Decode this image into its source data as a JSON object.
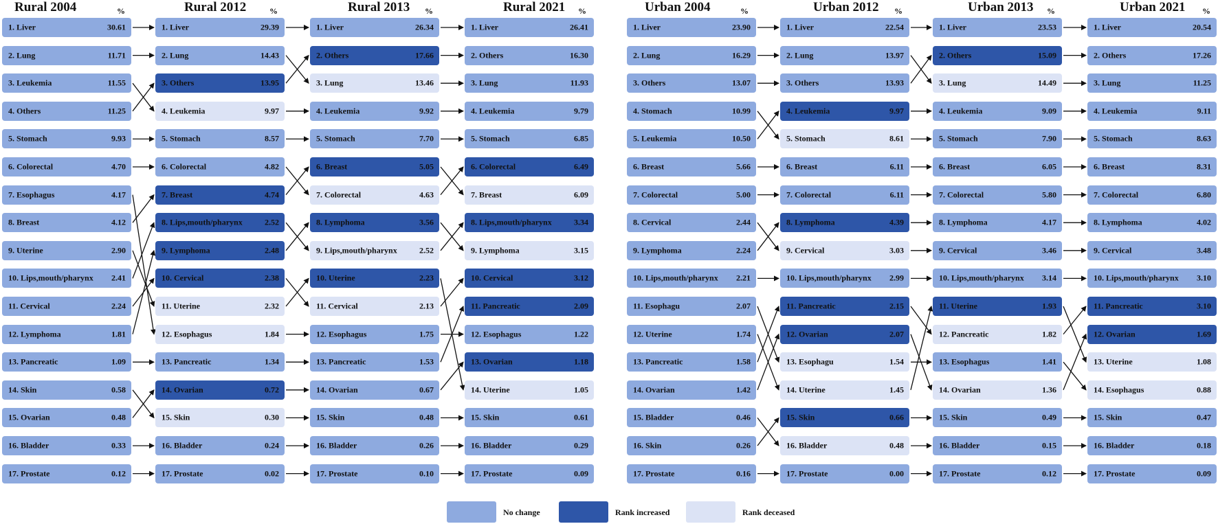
{
  "colors": {
    "no_change": "#8eaadf",
    "rank_increased": "#2e56a8",
    "rank_decreased": "#dce3f5"
  },
  "pct_label": "%",
  "legend": [
    {
      "status": "same",
      "label": "No change"
    },
    {
      "status": "up",
      "label": "Rank increased"
    },
    {
      "status": "down",
      "label": "Rank deceased"
    }
  ],
  "columns": [
    {
      "title": "Rural 2004",
      "items": [
        {
          "name": "1. Liver",
          "value": "30.61",
          "status": "same"
        },
        {
          "name": "2. Lung",
          "value": "11.71",
          "status": "same"
        },
        {
          "name": "3. Leukemia",
          "value": "11.55",
          "status": "same"
        },
        {
          "name": "4. Others",
          "value": "11.25",
          "status": "same"
        },
        {
          "name": "5. Stomach",
          "value": "9.93",
          "status": "same"
        },
        {
          "name": "6. Colorectal",
          "value": "4.70",
          "status": "same"
        },
        {
          "name": "7. Esophagus",
          "value": "4.17",
          "status": "same"
        },
        {
          "name": "8. Breast",
          "value": "4.12",
          "status": "same"
        },
        {
          "name": "9. Uterine",
          "value": "2.90",
          "status": "same"
        },
        {
          "name": "10. Lips,mouth/pharynx",
          "value": "2.41",
          "status": "same"
        },
        {
          "name": "11. Cervical",
          "value": "2.24",
          "status": "same"
        },
        {
          "name": "12. Lymphoma",
          "value": "1.81",
          "status": "same"
        },
        {
          "name": "13. Pancreatic",
          "value": "1.09",
          "status": "same"
        },
        {
          "name": "14. Skin",
          "value": "0.58",
          "status": "same"
        },
        {
          "name": "15. Ovarian",
          "value": "0.48",
          "status": "same"
        },
        {
          "name": "16. Bladder",
          "value": "0.33",
          "status": "same"
        },
        {
          "name": "17. Prostate",
          "value": "0.12",
          "status": "same"
        }
      ]
    },
    {
      "title": "Rural 2012",
      "items": [
        {
          "name": "1. Liver",
          "value": "29.39",
          "status": "same"
        },
        {
          "name": "2. Lung",
          "value": "14.43",
          "status": "same"
        },
        {
          "name": "3. Others",
          "value": "13.95",
          "status": "up"
        },
        {
          "name": "4. Leukemia",
          "value": "9.97",
          "status": "down"
        },
        {
          "name": "5. Stomach",
          "value": "8.57",
          "status": "same"
        },
        {
          "name": "6. Colorectal",
          "value": "4.82",
          "status": "same"
        },
        {
          "name": "7. Breast",
          "value": "4.74",
          "status": "up"
        },
        {
          "name": "8. Lips,mouth/pharynx",
          "value": "2.52",
          "status": "up"
        },
        {
          "name": "9. Lymphoma",
          "value": "2.48",
          "status": "up"
        },
        {
          "name": "10. Cervical",
          "value": "2.38",
          "status": "up"
        },
        {
          "name": "11. Uterine",
          "value": "2.32",
          "status": "down"
        },
        {
          "name": "12. Esophagus",
          "value": "1.84",
          "status": "down"
        },
        {
          "name": "13. Pancreatic",
          "value": "1.34",
          "status": "same"
        },
        {
          "name": "14. Ovarian",
          "value": "0.72",
          "status": "up"
        },
        {
          "name": "15. Skin",
          "value": "0.30",
          "status": "down"
        },
        {
          "name": "16. Bladder",
          "value": "0.24",
          "status": "same"
        },
        {
          "name": "17. Prostate",
          "value": "0.02",
          "status": "same"
        }
      ]
    },
    {
      "title": "Rural 2013",
      "items": [
        {
          "name": "1. Liver",
          "value": "26.34",
          "status": "same"
        },
        {
          "name": "2. Others",
          "value": "17.66",
          "status": "up"
        },
        {
          "name": "3. Lung",
          "value": "13.46",
          "status": "down"
        },
        {
          "name": "4. Leukemia",
          "value": "9.92",
          "status": "same"
        },
        {
          "name": "5. Stomach",
          "value": "7.70",
          "status": "same"
        },
        {
          "name": "6. Breast",
          "value": "5.05",
          "status": "up"
        },
        {
          "name": "7. Colorectal",
          "value": "4.63",
          "status": "down"
        },
        {
          "name": "8. Lymphoma",
          "value": "3.56",
          "status": "up"
        },
        {
          "name": "9. Lips,mouth/pharynx",
          "value": "2.52",
          "status": "down"
        },
        {
          "name": "10. Uterine",
          "value": "2.23",
          "status": "up"
        },
        {
          "name": "11. Cervical",
          "value": "2.13",
          "status": "down"
        },
        {
          "name": "12. Esophagus",
          "value": "1.75",
          "status": "same"
        },
        {
          "name": "13. Pancreatic",
          "value": "1.53",
          "status": "same"
        },
        {
          "name": "14. Ovarian",
          "value": "0.67",
          "status": "same"
        },
        {
          "name": "15. Skin",
          "value": "0.48",
          "status": "same"
        },
        {
          "name": "16. Bladder",
          "value": "0.26",
          "status": "same"
        },
        {
          "name": "17. Prostate",
          "value": "0.10",
          "status": "same"
        }
      ]
    },
    {
      "title": "Rural 2021",
      "items": [
        {
          "name": "1. Liver",
          "value": "26.41",
          "status": "same"
        },
        {
          "name": "2. Others",
          "value": "16.30",
          "status": "same"
        },
        {
          "name": "3. Lung",
          "value": "11.93",
          "status": "same"
        },
        {
          "name": "4. Leukemia",
          "value": "9.79",
          "status": "same"
        },
        {
          "name": "5. Stomach",
          "value": "6.85",
          "status": "same"
        },
        {
          "name": "6. Colorectal",
          "value": "6.49",
          "status": "up"
        },
        {
          "name": "7. Breast",
          "value": "6.09",
          "status": "down"
        },
        {
          "name": "8. Lips,mouth/pharynx",
          "value": "3.34",
          "status": "up"
        },
        {
          "name": "9. Lymphoma",
          "value": "3.15",
          "status": "down"
        },
        {
          "name": "10. Cervical",
          "value": "3.12",
          "status": "up"
        },
        {
          "name": "11. Pancreatic",
          "value": "2.09",
          "status": "up"
        },
        {
          "name": "12. Esophagus",
          "value": "1.22",
          "status": "same"
        },
        {
          "name": "13. Ovarian",
          "value": "1.18",
          "status": "up"
        },
        {
          "name": "14. Uterine",
          "value": "1.05",
          "status": "down"
        },
        {
          "name": "15. Skin",
          "value": "0.61",
          "status": "same"
        },
        {
          "name": "16. Bladder",
          "value": "0.29",
          "status": "same"
        },
        {
          "name": "17. Prostate",
          "value": "0.09",
          "status": "same"
        }
      ]
    },
    {
      "title": "Urban 2004",
      "items": [
        {
          "name": "1. Liver",
          "value": "23.90",
          "status": "same"
        },
        {
          "name": "2. Lung",
          "value": "16.29",
          "status": "same"
        },
        {
          "name": "3. Others",
          "value": "13.07",
          "status": "same"
        },
        {
          "name": "4. Stomach",
          "value": "10.99",
          "status": "same"
        },
        {
          "name": "5. Leukemia",
          "value": "10.50",
          "status": "same"
        },
        {
          "name": "6. Breast",
          "value": "5.66",
          "status": "same"
        },
        {
          "name": "7. Colorectal",
          "value": "5.00",
          "status": "same"
        },
        {
          "name": "8. Cervical",
          "value": "2.44",
          "status": "same"
        },
        {
          "name": "9. Lymphoma",
          "value": "2.24",
          "status": "same"
        },
        {
          "name": "10. Lips,mouth/pharynx",
          "value": "2.21",
          "status": "same"
        },
        {
          "name": "11. Esophagu",
          "value": "2.07",
          "status": "same"
        },
        {
          "name": "12. Uterine",
          "value": "1.74",
          "status": "same"
        },
        {
          "name": "13. Pancreatic",
          "value": "1.58",
          "status": "same"
        },
        {
          "name": "14. Ovarian",
          "value": "1.42",
          "status": "same"
        },
        {
          "name": "15. Bladder",
          "value": "0.46",
          "status": "same"
        },
        {
          "name": "16. Skin",
          "value": "0.26",
          "status": "same"
        },
        {
          "name": "17. Prostate",
          "value": "0.16",
          "status": "same"
        }
      ]
    },
    {
      "title": "Urban 2012",
      "items": [
        {
          "name": "1. Liver",
          "value": "22.54",
          "status": "same"
        },
        {
          "name": "2. Lung",
          "value": "13.97",
          "status": "same"
        },
        {
          "name": "3. Others",
          "value": "13.93",
          "status": "same"
        },
        {
          "name": "4. Leukemia",
          "value": "9.97",
          "status": "up"
        },
        {
          "name": "5. Stomach",
          "value": "8.61",
          "status": "down"
        },
        {
          "name": "6. Breast",
          "value": "6.11",
          "status": "same"
        },
        {
          "name": "7. Colorectal",
          "value": "6.11",
          "status": "same"
        },
        {
          "name": "8. Lymphoma",
          "value": "4.39",
          "status": "up"
        },
        {
          "name": "9. Cervical",
          "value": "3.03",
          "status": "down"
        },
        {
          "name": "10. Lips,mouth/pharynx",
          "value": "2.99",
          "status": "same"
        },
        {
          "name": "11. Pancreatic",
          "value": "2.15",
          "status": "up"
        },
        {
          "name": "12. Ovarian",
          "value": "2.07",
          "status": "up"
        },
        {
          "name": "13. Esophagu",
          "value": "1.54",
          "status": "down"
        },
        {
          "name": "14. Uterine",
          "value": "1.45",
          "status": "down"
        },
        {
          "name": "15. Skin",
          "value": "0.66",
          "status": "up"
        },
        {
          "name": "16. Bladder",
          "value": "0.48",
          "status": "down"
        },
        {
          "name": "17. Prostate",
          "value": "0.00",
          "status": "same"
        }
      ]
    },
    {
      "title": "Urban 2013",
      "items": [
        {
          "name": "1. Liver",
          "value": "23.53",
          "status": "same"
        },
        {
          "name": "2. Others",
          "value": "15.09",
          "status": "up"
        },
        {
          "name": "3. Lung",
          "value": "14.49",
          "status": "down"
        },
        {
          "name": "4. Leukemia",
          "value": "9.09",
          "status": "same"
        },
        {
          "name": "5. Stomach",
          "value": "7.90",
          "status": "same"
        },
        {
          "name": "6. Breast",
          "value": "6.05",
          "status": "same"
        },
        {
          "name": "7. Colorectal",
          "value": "5.80",
          "status": "same"
        },
        {
          "name": "8. Lymphoma",
          "value": "4.17",
          "status": "same"
        },
        {
          "name": "9. Cervical",
          "value": "3.46",
          "status": "same"
        },
        {
          "name": "10. Lips,mouth/pharynx",
          "value": "3.14",
          "status": "same"
        },
        {
          "name": "11. Uterine",
          "value": "1.93",
          "status": "up"
        },
        {
          "name": "12. Pancreatic",
          "value": "1.82",
          "status": "down"
        },
        {
          "name": "13. Esophagus",
          "value": "1.41",
          "status": "same"
        },
        {
          "name": "14. Ovarian",
          "value": "1.36",
          "status": "down"
        },
        {
          "name": "15. Skin",
          "value": "0.49",
          "status": "same"
        },
        {
          "name": "16. Bladder",
          "value": "0.15",
          "status": "same"
        },
        {
          "name": "17. Prostate",
          "value": "0.12",
          "status": "same"
        }
      ]
    },
    {
      "title": "Urban 2021",
      "items": [
        {
          "name": "1. Liver",
          "value": "20.54",
          "status": "same"
        },
        {
          "name": "2. Others",
          "value": "17.26",
          "status": "same"
        },
        {
          "name": "3. Lung",
          "value": "11.25",
          "status": "same"
        },
        {
          "name": "4. Leukemia",
          "value": "9.11",
          "status": "same"
        },
        {
          "name": "5. Stomach",
          "value": "8.63",
          "status": "same"
        },
        {
          "name": "6. Breast",
          "value": "8.31",
          "status": "same"
        },
        {
          "name": "7. Colorectal",
          "value": "6.80",
          "status": "same"
        },
        {
          "name": "8. Lymphoma",
          "value": "4.02",
          "status": "same"
        },
        {
          "name": "9. Cervical",
          "value": "3.48",
          "status": "same"
        },
        {
          "name": "10. Lips,mouth/pharynx",
          "value": "3.10",
          "status": "same"
        },
        {
          "name": "11. Pancreatic",
          "value": "3.10",
          "status": "up"
        },
        {
          "name": "12. Ovarian",
          "value": "1.69",
          "status": "up"
        },
        {
          "name": "13. Uterine",
          "value": "1.08",
          "status": "down"
        },
        {
          "name": "14. Esophagus",
          "value": "0.88",
          "status": "down"
        },
        {
          "name": "15. Skin",
          "value": "0.47",
          "status": "same"
        },
        {
          "name": "16. Bladder",
          "value": "0.18",
          "status": "same"
        },
        {
          "name": "17. Prostate",
          "value": "0.09",
          "status": "same"
        }
      ]
    }
  ]
}
